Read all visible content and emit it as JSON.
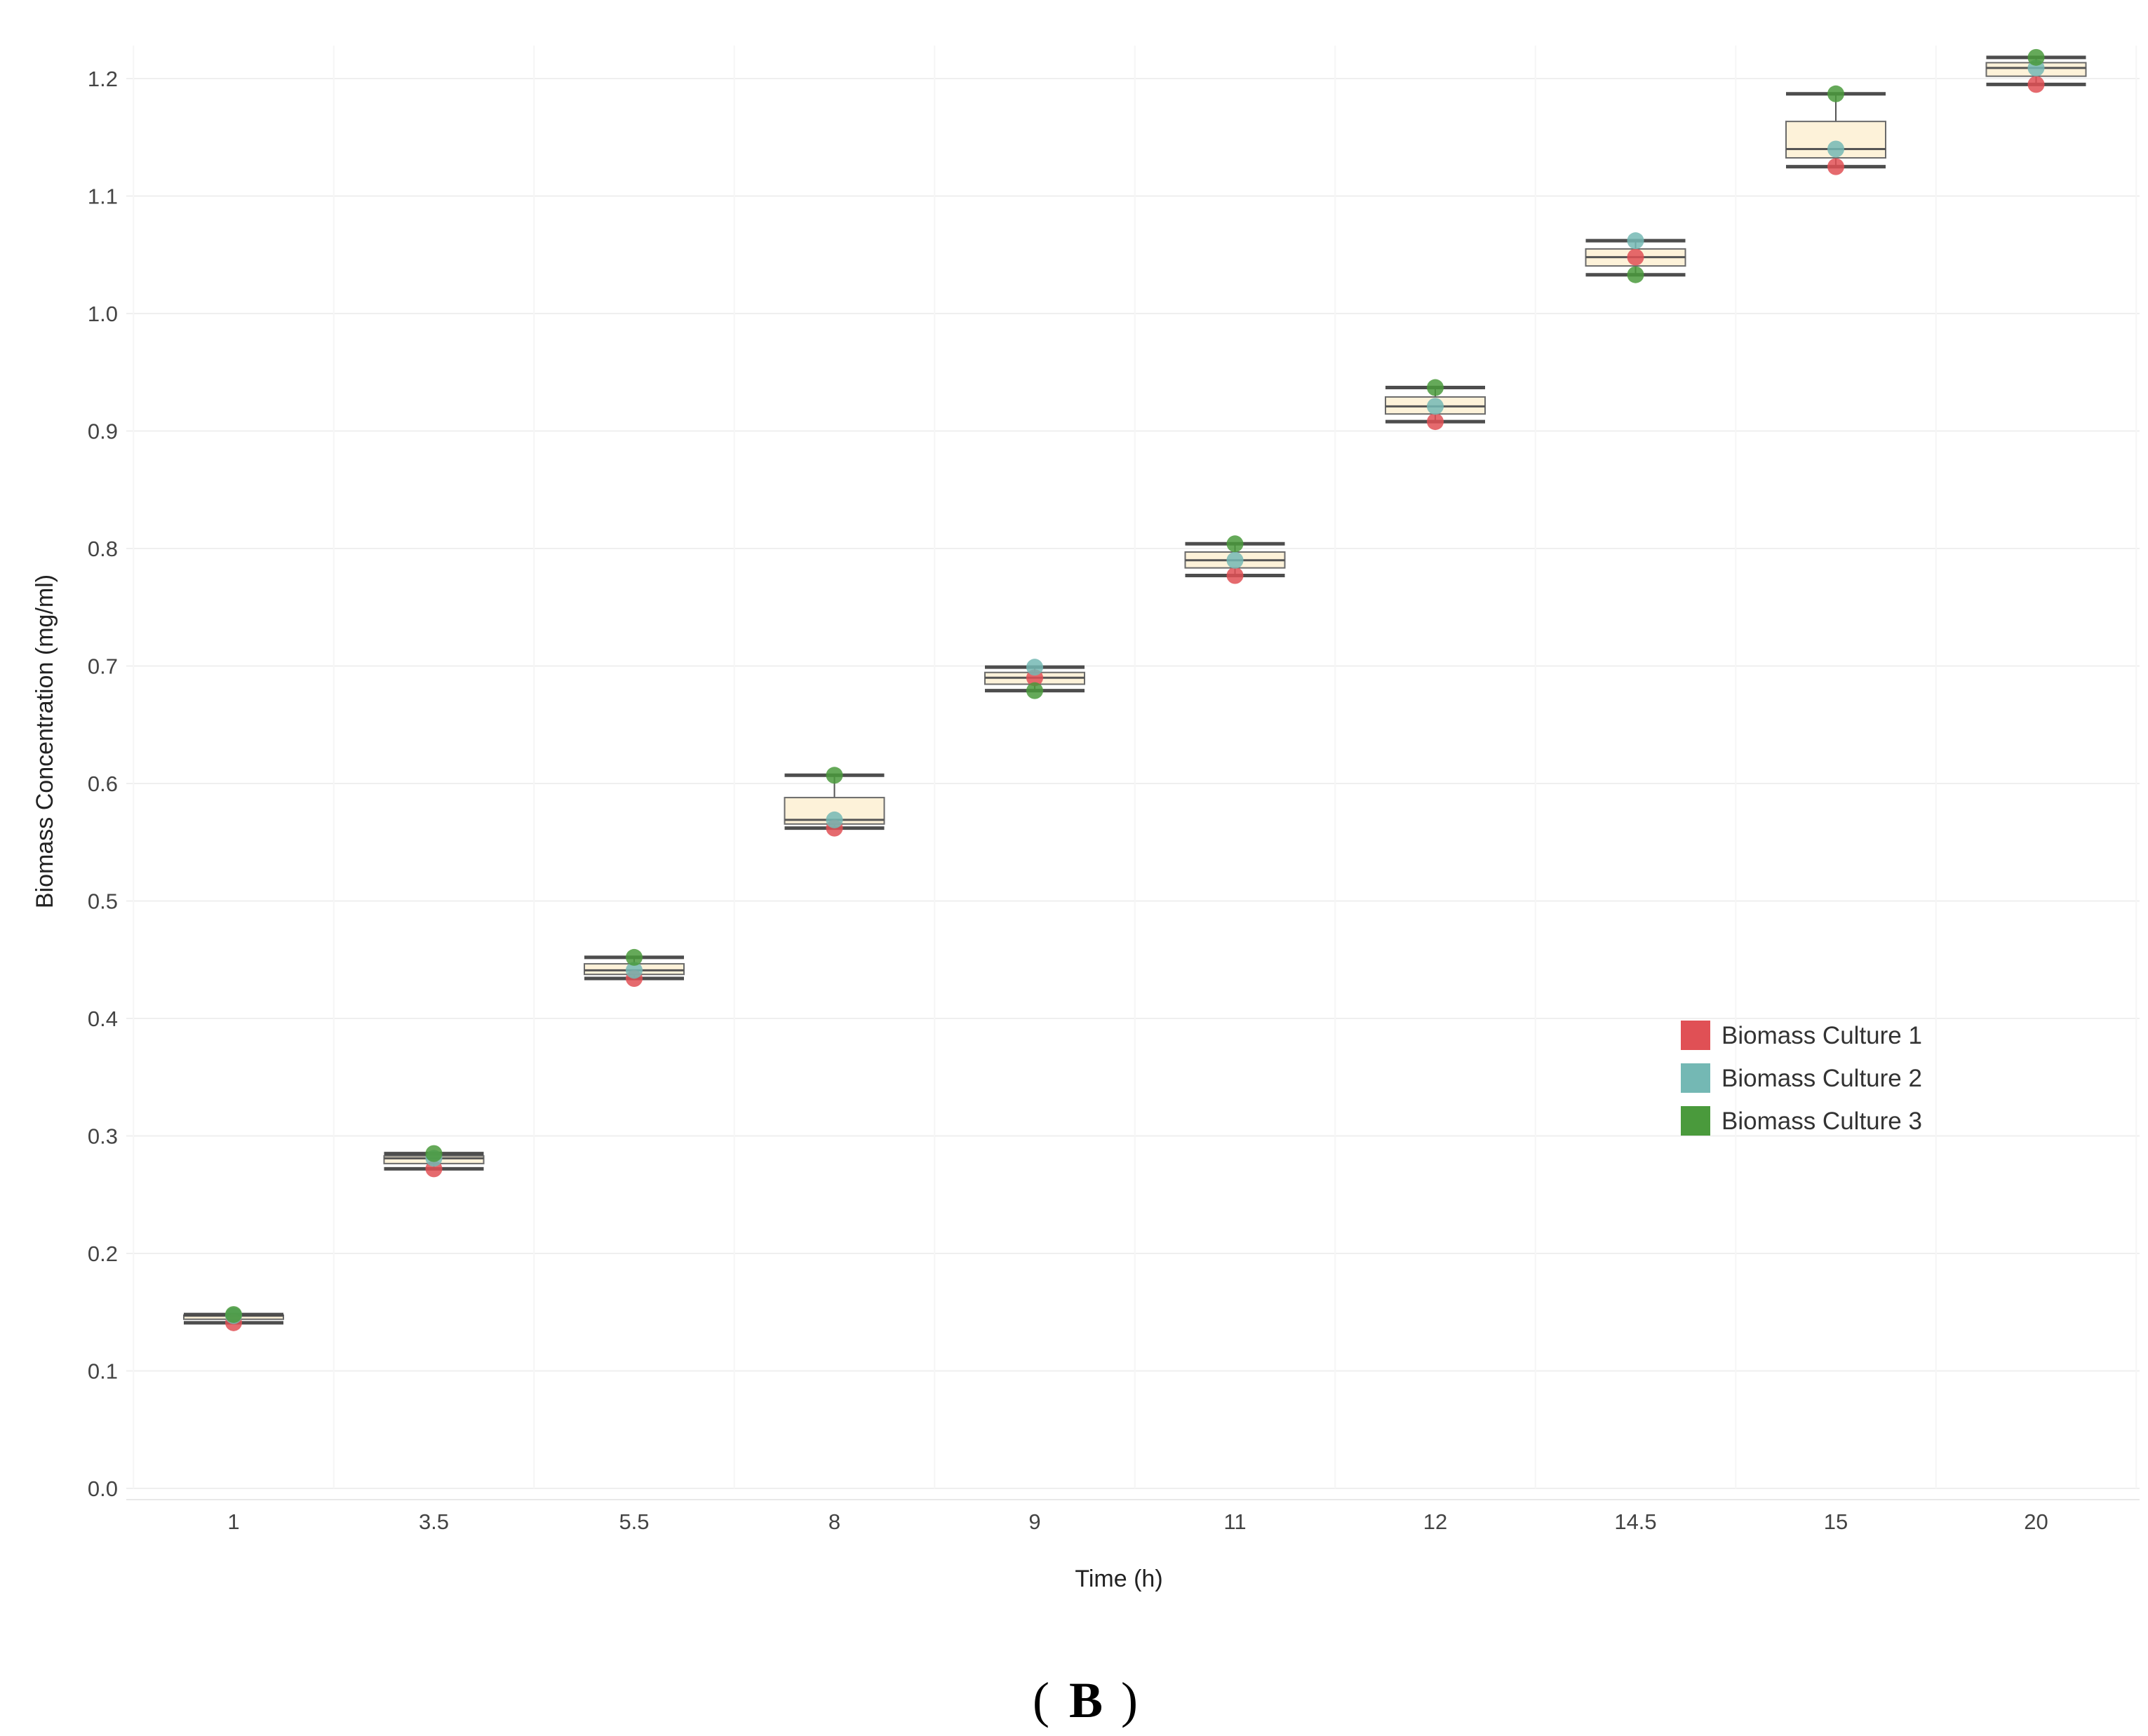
{
  "chart_data": {
    "type": "box",
    "title": "",
    "panel_label": "B",
    "xlabel": "Time (h)",
    "ylabel": "Biomass Concentration (mg/ml)",
    "ylim": [
      0.0,
      1.25
    ],
    "yticks": [
      "0.0",
      "0.1",
      "0.2",
      "0.3",
      "0.4",
      "0.5",
      "0.6",
      "0.7",
      "0.8",
      "0.9",
      "1.0",
      "1.1",
      "1.2"
    ],
    "grid": true,
    "legend_position": "right-middle",
    "categories": [
      "1",
      "3.5",
      "5.5",
      "8",
      "9",
      "11",
      "12",
      "14.5",
      "15",
      "20"
    ],
    "series": [
      {
        "name": "Biomass Culture 1",
        "color": "#e05055",
        "values": [
          0.141,
          0.272,
          0.434,
          0.562,
          0.69,
          0.777,
          0.908,
          1.048,
          1.125,
          1.195
        ]
      },
      {
        "name": "Biomass Culture 2",
        "color": "#74b8b4",
        "values": [
          0.147,
          0.281,
          0.441,
          0.569,
          0.699,
          0.79,
          0.921,
          1.062,
          1.14,
          1.209
        ]
      },
      {
        "name": "Biomass Culture 3",
        "color": "#4a9a3c",
        "values": [
          0.148,
          0.285,
          0.452,
          0.607,
          0.679,
          0.804,
          0.937,
          1.033,
          1.187,
          1.218
        ]
      }
    ],
    "box_color": "#fdf2d9"
  }
}
